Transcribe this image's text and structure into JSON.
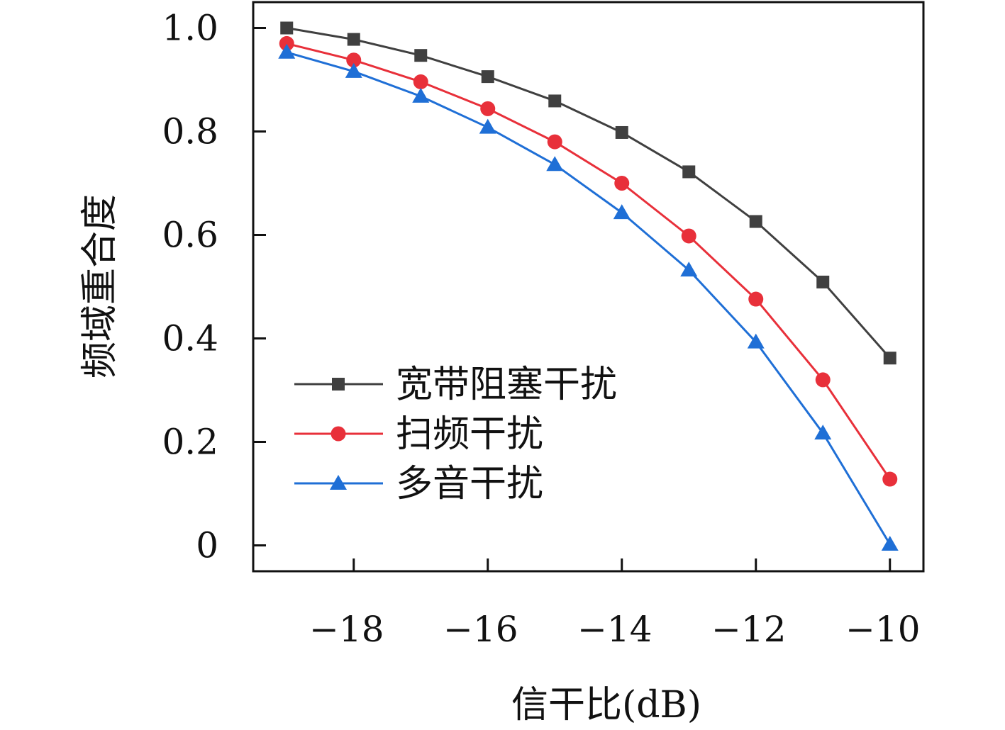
{
  "chart_data": {
    "type": "line",
    "xlabel": "信干比(dB)",
    "ylabel": "频域重合度",
    "title": "",
    "xlim": [
      -19.5,
      -9.5
    ],
    "ylim": [
      -0.05,
      1.05
    ],
    "x_ticks": [
      -18,
      -16,
      -14,
      -12,
      -10
    ],
    "x_tick_labels": [
      "−18",
      "−16",
      "−14",
      "−12",
      "−10"
    ],
    "y_ticks": [
      0,
      0.2,
      0.4,
      0.6,
      0.8,
      1.0
    ],
    "y_tick_labels": [
      "0",
      "0.2",
      "0.4",
      "0.6",
      "0.8",
      "1.0"
    ],
    "grid": false,
    "legend_position": "bottom-left",
    "x": [
      -19,
      -18,
      -17,
      -16,
      -15,
      -14,
      -13,
      -12,
      -11,
      -10
    ],
    "series": [
      {
        "name": "宽带阻塞干扰",
        "color": "#404040",
        "marker": "square",
        "values": [
          1.0,
          0.978,
          0.947,
          0.906,
          0.859,
          0.798,
          0.722,
          0.626,
          0.509,
          0.362
        ]
      },
      {
        "name": "扫频干扰",
        "color": "#e8303a",
        "marker": "circle",
        "values": [
          0.97,
          0.938,
          0.896,
          0.844,
          0.78,
          0.7,
          0.598,
          0.476,
          0.32,
          0.128
        ]
      },
      {
        "name": "多音干扰",
        "color": "#1f6fd6",
        "marker": "triangle",
        "values": [
          0.953,
          0.916,
          0.868,
          0.808,
          0.736,
          0.643,
          0.532,
          0.393,
          0.217,
          0.002
        ]
      }
    ]
  }
}
